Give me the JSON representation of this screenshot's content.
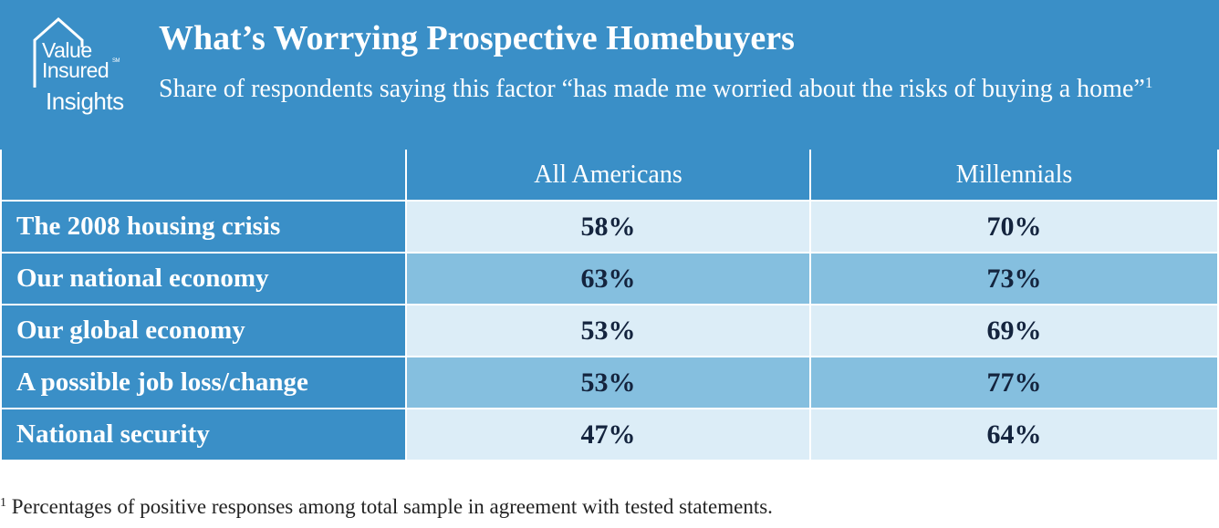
{
  "logo": {
    "line1": "Value",
    "line2": "Insured",
    "line3": "Insights",
    "mark": "SM"
  },
  "title": "What’s Worrying Prospective Homebuyers",
  "subtitle": "Share of respondents saying this factor “has made me worried about the risks of buying a home”",
  "subtitle_note_marker": "1",
  "colors": {
    "header_blue": "#3a8fc7",
    "row_light": "#dcedf7",
    "row_mid": "#85bfdf",
    "value_text": "#14243e"
  },
  "chart_data": {
    "type": "table",
    "title": "What’s Worrying Prospective Homebuyers",
    "columns": [
      "All Americans",
      "Millennials"
    ],
    "rows": [
      {
        "label": "The 2008 housing crisis",
        "values": [
          "58%",
          "70%"
        ]
      },
      {
        "label": "Our national economy",
        "values": [
          "63%",
          "73%"
        ]
      },
      {
        "label": "Our global economy",
        "values": [
          "53%",
          "69%"
        ]
      },
      {
        "label": "A possible job loss/change",
        "values": [
          "53%",
          "77%"
        ]
      },
      {
        "label": "National security",
        "values": [
          "47%",
          "64%"
        ]
      }
    ]
  },
  "footnote": {
    "marker": "1",
    "text": " Percentages of positive responses among total sample in agreement with tested statements."
  }
}
